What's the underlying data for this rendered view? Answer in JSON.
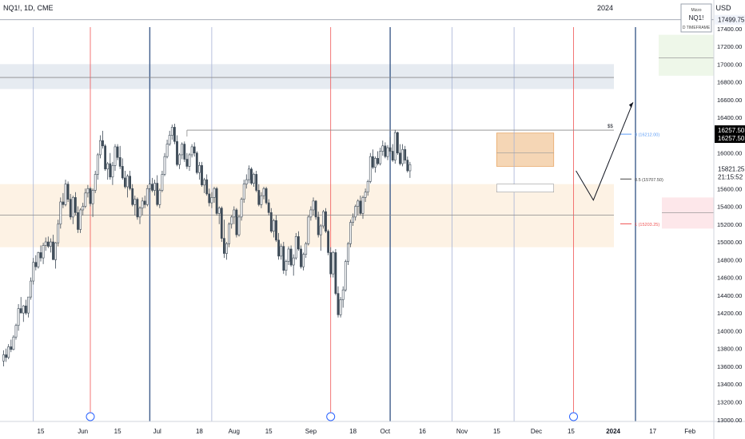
{
  "header": {
    "symbol_line": "NQ1!, 1D, CME",
    "year_label": "2024",
    "currency": "USD",
    "watermark": {
      "line1": "Mizzo",
      "line2": "NQ1!",
      "line3": "D TIMEFRAME"
    }
  },
  "price_axis": {
    "ticks": [
      "17400.00",
      "17200.00",
      "17000.00",
      "16800.00",
      "16600.00",
      "16400.00",
      "16200.00",
      "16000.00",
      "15800.00",
      "15600.00",
      "15400.00",
      "15200.00",
      "15000.00",
      "14800.00",
      "14600.00",
      "14400.00",
      "14200.00",
      "14000.00",
      "13800.00",
      "13600.00",
      "13400.00",
      "13200.00",
      "13000.00"
    ],
    "top_price_badge": "17499.75",
    "black_badge": [
      "16257.50",
      "16257.50"
    ],
    "current_price_badge": [
      "15821.25",
      "21:15:52"
    ]
  },
  "time_axis": {
    "labels": [
      {
        "text": "15",
        "day": 15
      },
      {
        "text": "Jun",
        "day": 32
      },
      {
        "text": "15",
        "day": 46
      },
      {
        "text": "Jul",
        "day": 62
      },
      {
        "text": "18",
        "day": 79
      },
      {
        "text": "Aug",
        "day": 93
      },
      {
        "text": "15",
        "day": 107
      },
      {
        "text": "Sep",
        "day": 124
      },
      {
        "text": "18",
        "day": 141
      },
      {
        "text": "Oct",
        "day": 154
      },
      {
        "text": "16",
        "day": 169
      },
      {
        "text": "Nov",
        "day": 185
      },
      {
        "text": "15",
        "day": 199
      },
      {
        "text": "Dec",
        "day": 215
      },
      {
        "text": "15",
        "day": 229
      },
      {
        "text": "2024",
        "day": 246
      },
      {
        "text": "17",
        "day": 262
      },
      {
        "text": "Feb",
        "day": 277
      }
    ]
  },
  "fib_levels": {
    "level_0": "0 (16212.00)",
    "level_05": "0.5 (15707.50)",
    "level_1": "1 (15203.25)",
    "dollar_label": "$$"
  },
  "colors": {
    "up_candle": "#ffffff",
    "down_candle": "#3d4a57",
    "vertical_blue": "#3f5d8c",
    "vertical_red": "#f05454",
    "vertical_light": "#a6b2d6",
    "supply_zone": "#f5d6b5",
    "demand_zone": "#fdf2e4",
    "gray_zone": "#e6ebf1",
    "fib_0": "#5b9cf6",
    "fib_05": "#444444",
    "fib_1": "#f05454"
  },
  "chart_data": {
    "type": "candlestick",
    "title": "NQ1!, 1D, CME",
    "ylim": [
      12980,
      17560
    ],
    "y_ticks": [
      17400,
      17200,
      17000,
      16800,
      16600,
      16400,
      16200,
      16000,
      15800,
      15600,
      15400,
      15200,
      15000,
      14800,
      14600,
      14400,
      14200,
      14000,
      13800,
      13600,
      13400,
      13200,
      13000
    ],
    "zones": [
      {
        "kind": "gray",
        "from": 16720,
        "to": 17000
      },
      {
        "kind": "demand",
        "from": 14940,
        "to": 15650
      },
      {
        "kind": "supply",
        "from": 15850,
        "to": 16225,
        "start_day": 199,
        "end_day": 222
      },
      {
        "kind": "green_box",
        "from": 16870,
        "to": 17330
      },
      {
        "kind": "pink_box",
        "from": 15150,
        "to": 15500
      }
    ],
    "horizontal_lines": [
      {
        "price": 16850
      },
      {
        "price": 15300
      },
      {
        "price": 16257.5,
        "start_day": 74
      }
    ],
    "fib": [
      {
        "level": "0",
        "price": 16212.0
      },
      {
        "level": "0.5",
        "price": 15707.5
      },
      {
        "level": "1",
        "price": 15203.25
      }
    ],
    "vertical_lines": [
      {
        "day": 12,
        "kind": "light"
      },
      {
        "day": 35,
        "kind": "red"
      },
      {
        "day": 59,
        "kind": "blue"
      },
      {
        "day": 84,
        "kind": "light"
      },
      {
        "day": 132,
        "kind": "red"
      },
      {
        "day": 156,
        "kind": "blue"
      },
      {
        "day": 181,
        "kind": "light"
      },
      {
        "day": 206,
        "kind": "light"
      },
      {
        "day": 230,
        "kind": "red"
      },
      {
        "day": 255,
        "kind": "blue"
      }
    ],
    "projection_path": [
      {
        "day": 231,
        "price": 15800
      },
      {
        "day": 238,
        "price": 15470
      },
      {
        "day": 254,
        "price": 16570
      }
    ],
    "candles": [
      [
        0,
        13660,
        13780,
        13600,
        13730
      ],
      [
        1,
        13730,
        13800,
        13650,
        13700
      ],
      [
        2,
        13700,
        13850,
        13680,
        13820
      ],
      [
        3,
        13820,
        13900,
        13760,
        13790
      ],
      [
        4,
        13790,
        13950,
        13780,
        13930
      ],
      [
        5,
        13930,
        14080,
        13900,
        14060
      ],
      [
        6,
        14060,
        14300,
        14000,
        14250
      ],
      [
        7,
        14250,
        14380,
        14200,
        14200
      ],
      [
        8,
        14200,
        14290,
        14100,
        14280
      ],
      [
        9,
        14280,
        14350,
        14180,
        14200
      ],
      [
        10,
        14200,
        14380,
        14150,
        14380
      ],
      [
        11,
        14380,
        14600,
        14350,
        14560
      ],
      [
        12,
        14560,
        14820,
        14520,
        14770
      ],
      [
        13,
        14770,
        14850,
        14680,
        14720
      ],
      [
        14,
        14720,
        14890,
        14700,
        14880
      ],
      [
        15,
        14880,
        14960,
        14780,
        14820
      ],
      [
        16,
        14820,
        14990,
        14750,
        14960
      ],
      [
        17,
        14960,
        15050,
        14900,
        15000
      ],
      [
        18,
        15000,
        15060,
        14930,
        14950
      ],
      [
        19,
        14950,
        15040,
        14880,
        15000
      ],
      [
        20,
        15000,
        15080,
        14800,
        14800
      ],
      [
        21,
        14800,
        15000,
        14700,
        14990
      ],
      [
        22,
        14990,
        15250,
        14950,
        15200
      ],
      [
        23,
        15200,
        15500,
        15150,
        15450
      ],
      [
        24,
        15450,
        15550,
        15380,
        15420
      ],
      [
        25,
        15420,
        15700,
        15400,
        15650
      ],
      [
        26,
        15650,
        15680,
        15450,
        15480
      ],
      [
        27,
        15480,
        15540,
        15250,
        15280
      ],
      [
        28,
        15280,
        15520,
        15200,
        15500
      ],
      [
        29,
        15500,
        15560,
        15300,
        15330
      ],
      [
        30,
        15330,
        15400,
        15100,
        15140
      ],
      [
        31,
        15140,
        15380,
        15100,
        15360
      ],
      [
        32,
        15360,
        15440,
        15300,
        15400
      ],
      [
        33,
        15400,
        15600,
        15380,
        15550
      ],
      [
        34,
        15550,
        15640,
        15500,
        15600
      ],
      [
        35,
        15600,
        15620,
        15400,
        15430
      ],
      [
        36,
        15430,
        15600,
        15280,
        15580
      ],
      [
        37,
        15580,
        15800,
        15550,
        15760
      ],
      [
        38,
        15760,
        16000,
        15700,
        15980
      ],
      [
        39,
        15980,
        16200,
        15940,
        16140
      ],
      [
        40,
        16140,
        16250,
        16050,
        16080
      ],
      [
        41,
        16080,
        16100,
        15800,
        15820
      ],
      [
        42,
        15820,
        15900,
        15700,
        15880
      ],
      [
        43,
        15880,
        16000,
        15700,
        15730
      ],
      [
        44,
        15730,
        15900,
        15640,
        15860
      ],
      [
        45,
        15860,
        16100,
        15800,
        16070
      ],
      [
        46,
        16070,
        16100,
        15920,
        15950
      ],
      [
        47,
        15950,
        16080,
        15820,
        15850
      ],
      [
        48,
        15850,
        15940,
        15700,
        15720
      ],
      [
        49,
        15720,
        15800,
        15600,
        15620
      ],
      [
        50,
        15620,
        15760,
        15500,
        15740
      ],
      [
        51,
        15740,
        15800,
        15580,
        15600
      ],
      [
        52,
        15600,
        15650,
        15400,
        15420
      ],
      [
        53,
        15420,
        15520,
        15300,
        15480
      ],
      [
        54,
        15480,
        15500,
        15250,
        15280
      ],
      [
        55,
        15280,
        15400,
        15200,
        15380
      ],
      [
        56,
        15380,
        15500,
        15300,
        15460
      ],
      [
        57,
        15460,
        15520,
        15380,
        15420
      ],
      [
        58,
        15420,
        15640,
        15400,
        15600
      ],
      [
        59,
        15600,
        15700,
        15560,
        15650
      ],
      [
        60,
        15650,
        15720,
        15560,
        15580
      ],
      [
        61,
        15580,
        15700,
        15520,
        15660
      ],
      [
        62,
        15660,
        15750,
        15400,
        15420
      ],
      [
        63,
        15420,
        15600,
        15380,
        15580
      ],
      [
        64,
        15580,
        15800,
        15560,
        15760
      ],
      [
        65,
        15760,
        16000,
        15740,
        15960
      ],
      [
        66,
        15960,
        16150,
        15940,
        16100
      ],
      [
        67,
        16100,
        16250,
        16080,
        16200
      ],
      [
        68,
        16200,
        16320,
        16150,
        16290
      ],
      [
        69,
        16290,
        16330,
        16100,
        16130
      ],
      [
        70,
        16130,
        16200,
        15850,
        15870
      ],
      [
        71,
        15870,
        16000,
        15820,
        15980
      ],
      [
        72,
        15980,
        16120,
        15930,
        16100
      ],
      [
        73,
        16100,
        16130,
        15900,
        15930
      ],
      [
        74,
        15930,
        16000,
        15820,
        15850
      ],
      [
        75,
        15850,
        16000,
        15800,
        15980
      ],
      [
        76,
        15980,
        16100,
        15950,
        16070
      ],
      [
        77,
        16070,
        16120,
        15960,
        16000
      ],
      [
        78,
        16000,
        16020,
        15760,
        15780
      ],
      [
        79,
        15780,
        15900,
        15700,
        15860
      ],
      [
        80,
        15860,
        15900,
        15620,
        15640
      ],
      [
        81,
        15640,
        15720,
        15550,
        15700
      ],
      [
        82,
        15700,
        15760,
        15520,
        15540
      ],
      [
        83,
        15540,
        15600,
        15400,
        15440
      ],
      [
        84,
        15440,
        15560,
        15380,
        15500
      ],
      [
        85,
        15500,
        15620,
        15440,
        15600
      ],
      [
        86,
        15600,
        15620,
        15300,
        15320
      ],
      [
        87,
        15320,
        15400,
        15200,
        15380
      ],
      [
        88,
        15380,
        15400,
        15000,
        15040
      ],
      [
        89,
        15040,
        15250,
        14820,
        14870
      ],
      [
        90,
        14870,
        15000,
        14800,
        14980
      ],
      [
        91,
        14980,
        15220,
        14940,
        15200
      ],
      [
        92,
        15200,
        15300,
        15150,
        15280
      ],
      [
        93,
        15280,
        15400,
        15200,
        15360
      ],
      [
        94,
        15360,
        15380,
        15050,
        15080
      ],
      [
        95,
        15080,
        15300,
        15060,
        15280
      ],
      [
        96,
        15280,
        15500,
        15240,
        15480
      ],
      [
        97,
        15480,
        15700,
        15440,
        15650
      ],
      [
        98,
        15650,
        15760,
        15600,
        15700
      ],
      [
        99,
        15700,
        15860,
        15660,
        15820
      ],
      [
        100,
        15820,
        15840,
        15640,
        15660
      ],
      [
        101,
        15660,
        15780,
        15620,
        15760
      ],
      [
        102,
        15760,
        15800,
        15560,
        15580
      ],
      [
        103,
        15580,
        15650,
        15400,
        15420
      ],
      [
        104,
        15420,
        15560,
        15380,
        15520
      ],
      [
        105,
        15520,
        15620,
        15480,
        15600
      ],
      [
        106,
        15600,
        15620,
        15420,
        15440
      ],
      [
        107,
        15440,
        15480,
        15300,
        15330
      ],
      [
        108,
        15330,
        15380,
        15100,
        15120
      ],
      [
        109,
        15120,
        15260,
        15050,
        15240
      ],
      [
        110,
        15240,
        15300,
        15000,
        15020
      ],
      [
        111,
        15020,
        15100,
        14800,
        14840
      ],
      [
        112,
        14840,
        14980,
        14800,
        14950
      ],
      [
        113,
        14950,
        15000,
        14640,
        14680
      ],
      [
        114,
        14680,
        14800,
        14620,
        14780
      ],
      [
        115,
        14780,
        14950,
        14740,
        14920
      ],
      [
        116,
        14920,
        14960,
        14720,
        14740
      ],
      [
        117,
        14740,
        14860,
        14620,
        14820
      ],
      [
        118,
        14820,
        15100,
        14800,
        15060
      ],
      [
        119,
        15060,
        15120,
        14900,
        14920
      ],
      [
        120,
        14920,
        14960,
        14700,
        14720
      ],
      [
        121,
        14720,
        14880,
        14680,
        14860
      ],
      [
        122,
        14860,
        15000,
        14820,
        14980
      ],
      [
        123,
        14980,
        15300,
        14960,
        15280
      ],
      [
        124,
        15280,
        15400,
        15240,
        15360
      ],
      [
        125,
        15360,
        15500,
        15300,
        15460
      ],
      [
        126,
        15460,
        15470,
        15250,
        15280
      ],
      [
        127,
        15280,
        15340,
        15050,
        15080
      ],
      [
        128,
        15080,
        15200,
        14900,
        15180
      ],
      [
        129,
        15180,
        15360,
        15150,
        15340
      ],
      [
        130,
        15340,
        15380,
        15100,
        15120
      ],
      [
        131,
        15120,
        15140,
        14850,
        14880
      ],
      [
        132,
        14880,
        14940,
        14600,
        14640
      ],
      [
        133,
        14640,
        14900,
        14600,
        14880
      ],
      [
        134,
        14880,
        14920,
        14400,
        14420
      ],
      [
        135,
        14420,
        14500,
        14150,
        14180
      ],
      [
        136,
        14180,
        14380,
        14150,
        14350
      ],
      [
        137,
        14350,
        14500,
        14260,
        14460
      ],
      [
        138,
        14460,
        14800,
        14440,
        14780
      ],
      [
        139,
        14780,
        15000,
        14740,
        14980
      ],
      [
        140,
        14980,
        15250,
        14940,
        15220
      ],
      [
        141,
        15220,
        15320,
        15180,
        15280
      ],
      [
        142,
        15280,
        15420,
        15240,
        15400
      ],
      [
        143,
        15400,
        15480,
        15300,
        15460
      ],
      [
        144,
        15460,
        15520,
        15300,
        15320
      ],
      [
        145,
        15320,
        15520,
        15260,
        15500
      ],
      [
        146,
        15500,
        15600,
        15450,
        15560
      ],
      [
        147,
        15560,
        15700,
        15520,
        15680
      ],
      [
        148,
        15680,
        16000,
        15660,
        15960
      ],
      [
        149,
        15960,
        16040,
        15820,
        15840
      ],
      [
        150,
        15840,
        15960,
        15780,
        15940
      ],
      [
        151,
        15940,
        16020,
        15860,
        15880
      ],
      [
        152,
        15880,
        16060,
        15860,
        16020
      ],
      [
        153,
        16020,
        16140,
        15970,
        16080
      ],
      [
        154,
        16080,
        16120,
        15940,
        15960
      ],
      [
        155,
        15960,
        16090,
        15920,
        16060
      ],
      [
        156,
        16060,
        16180,
        15990,
        16020
      ],
      [
        157,
        16020,
        16100,
        15900,
        15920
      ],
      [
        158,
        15920,
        16260,
        15880,
        16230
      ],
      [
        159,
        16230,
        16240,
        15980,
        16000
      ],
      [
        160,
        16000,
        16100,
        15860,
        15880
      ],
      [
        161,
        15880,
        16100,
        15850,
        16040
      ],
      [
        162,
        16040,
        16080,
        15880,
        15920
      ],
      [
        163,
        15920,
        15960,
        15780,
        15800
      ],
      [
        164,
        15800,
        15900,
        15720,
        15870
      ]
    ]
  }
}
